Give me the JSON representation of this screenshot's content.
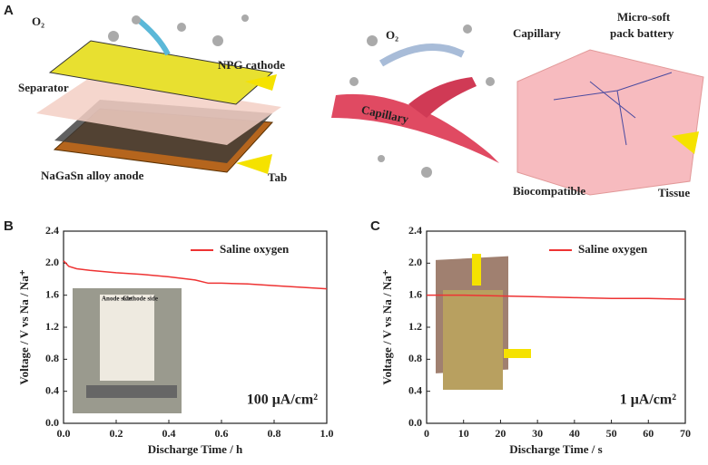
{
  "panels": [
    "A",
    "B",
    "C"
  ],
  "illustration": {
    "left": {
      "gas": "O₂",
      "cathode": "NPG cathode",
      "separator": "Separator",
      "anode": "NaGaSn alloy anode",
      "tab": "Tab"
    },
    "right": {
      "gas": "O₂",
      "vessel": "Capillary",
      "capillary": "Capillary",
      "battery": [
        "Micro-soft",
        "pack battery"
      ],
      "biocompatible": "Biocompatible",
      "tissue": "Tissue"
    }
  },
  "chart_data": [
    {
      "type": "line",
      "xlabel": "Discharge Time / h",
      "ylabel": "Voltage / V vs Na / Na⁺",
      "x": [
        0,
        0.02,
        0.05,
        0.1,
        0.2,
        0.3,
        0.4,
        0.5,
        0.55,
        0.6,
        0.7,
        0.8,
        0.9,
        1.0
      ],
      "series": [
        {
          "name": "Saline oxygen",
          "color": "#ee3333",
          "values": [
            2.03,
            1.96,
            1.93,
            1.91,
            1.88,
            1.86,
            1.83,
            1.79,
            1.75,
            1.75,
            1.74,
            1.72,
            1.7,
            1.68
          ]
        }
      ],
      "xlim": [
        0,
        1.0
      ],
      "xticks": [
        {
          "value": 0,
          "label": "0.0"
        },
        0.2,
        0.4,
        0.6,
        0.8,
        {
          "value": 1.0,
          "label": "1.0"
        }
      ],
      "ylim": [
        0,
        2.4
      ],
      "yticks": [
        {
          "value": 0,
          "label": "0.0"
        },
        0.4,
        0.8,
        1.2,
        1.6,
        {
          "value": 2.0,
          "label": "2.0"
        },
        2.4
      ],
      "legend": "upper right",
      "annotation": "100 μA/cm²",
      "inset_labels": [
        "Anode side",
        "Cathode side"
      ]
    },
    {
      "type": "line",
      "xlabel": "Discharge Time / s",
      "ylabel": "Voltage / V vs Na / Na⁺",
      "x": [
        0,
        10,
        20,
        30,
        40,
        50,
        60,
        70
      ],
      "series": [
        {
          "name": "Saline oxygen",
          "color": "#ee3333",
          "values": [
            1.6,
            1.6,
            1.59,
            1.58,
            1.57,
            1.56,
            1.56,
            1.55
          ]
        }
      ],
      "xlim": [
        0,
        70
      ],
      "xticks": [
        0,
        10,
        20,
        30,
        40,
        50,
        60,
        70
      ],
      "ylim": [
        0,
        2.4
      ],
      "yticks": [
        {
          "value": 0,
          "label": "0.0"
        },
        0.4,
        0.8,
        1.2,
        1.6,
        {
          "value": 2.0,
          "label": "2.0"
        },
        2.4
      ],
      "legend": "upper right",
      "annotation": "1 μA/cm²"
    }
  ]
}
